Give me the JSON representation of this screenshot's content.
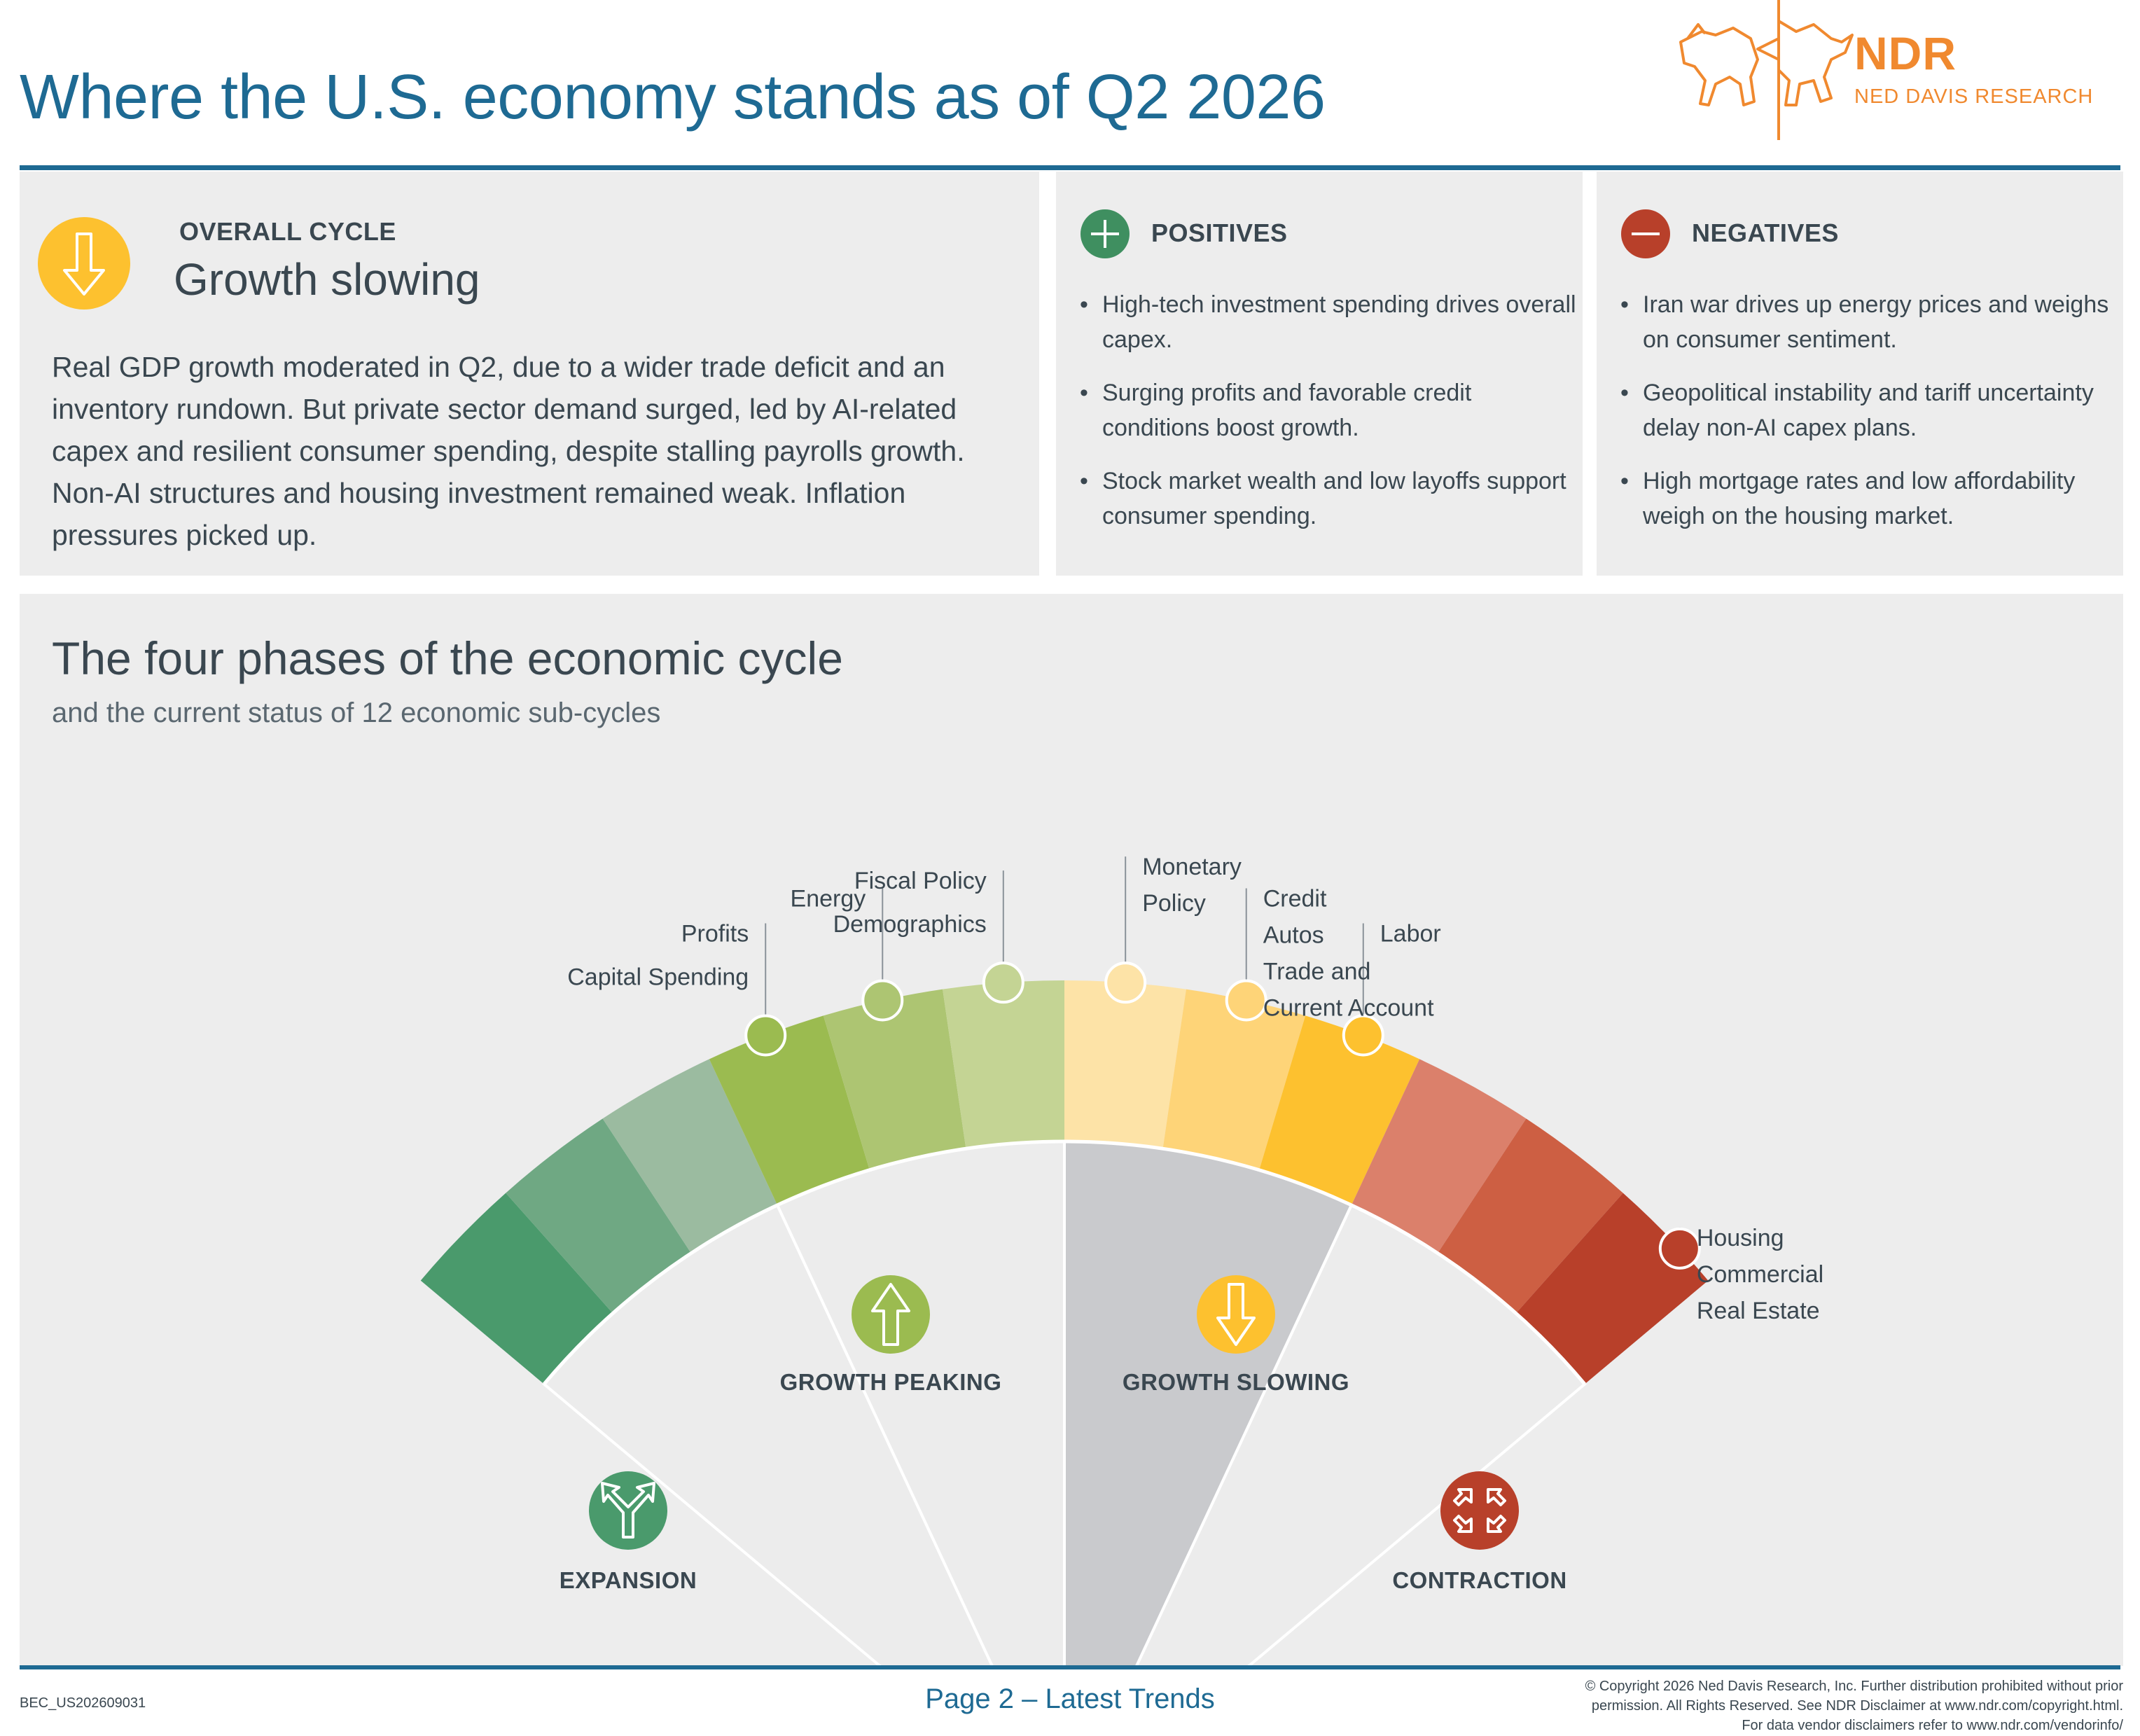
{
  "header": {
    "title": "Where the U.S. economy stands as of Q2 2026",
    "logo_name": "NDR",
    "logo_subtitle": "NED DAVIS RESEARCH"
  },
  "overall": {
    "label": "OVERALL CYCLE",
    "status": "Growth slowing",
    "icon": "arrow-down-icon",
    "text": "Real GDP growth moderated in Q2, due to a wider trade deficit and an inventory rundown. But private sector demand surged, led by AI-related capex and resilient consumer spending, despite stalling payrolls growth. Non-AI structures and housing investment remained weak. Inflation pressures picked up."
  },
  "positives": {
    "label": "POSITIVES",
    "icon": "plus-icon",
    "items": [
      "High-tech investment spending drives overall capex.",
      "Surging profits and favorable credit conditions boost growth.",
      "Stock market wealth and low layoffs support consumer spending."
    ]
  },
  "negatives": {
    "label": "NEGATIVES",
    "icon": "minus-icon",
    "items": [
      "Iran war drives up energy prices and weighs on consumer sentiment.",
      "Geopolitical instability and tariff uncertainty delay non-AI capex plans.",
      "High mortgage rates and low affordability weigh on the housing market."
    ]
  },
  "cycle": {
    "title": "The four phases of the economic cycle",
    "subtitle": "and the current status of 12 economic sub-cycles",
    "phases": {
      "expansion": "EXPANSION",
      "peaking": "GROWTH PEAKING",
      "slowing": "GROWTH SLOWING",
      "contraction": "CONTRACTION"
    },
    "phase_icons": {
      "expansion": "diverging-arrows-icon",
      "peaking": "arrow-up-icon",
      "slowing": "arrow-down-icon",
      "contraction": "converging-arrows-icon"
    },
    "segment_colors": [
      "#4a9a6c",
      "#6fa883",
      "#9bbba0",
      "#9bbb50",
      "#adc572",
      "#c4d494",
      "#fde3a7",
      "#fed478",
      "#fdc12f",
      "#db806b",
      "#cd5f43",
      "#b8402a"
    ],
    "markers": [
      {
        "labels": [
          "Profits",
          "Capital Spending"
        ],
        "segment": 4
      },
      {
        "labels": [
          "Energy"
        ],
        "segment": 5
      },
      {
        "labels": [
          "Fiscal Policy",
          "Demographics"
        ],
        "segment": 6
      },
      {
        "labels": [
          "Monetary",
          "Policy"
        ],
        "segment": 7
      },
      {
        "labels": [
          "Credit",
          "Autos",
          "Trade and",
          "Current Account"
        ],
        "segment": 8
      },
      {
        "labels": [
          "Labor"
        ],
        "segment": 9
      },
      {
        "labels": [
          "Housing",
          "Commercial",
          "Real Estate"
        ],
        "segment": 12
      }
    ]
  },
  "footer": {
    "code": "BEC_US202609031",
    "page": "Page 2 – Latest Trends",
    "copyright_lines": [
      "© Copyright 2026 Ned Davis Research, Inc. Further distribution prohibited without prior",
      "permission. All Rights Reserved. See NDR Disclaimer at www.ndr.com/copyright.html.",
      "For data vendor disclaimers refer to www.ndr.com/vendorinfo/"
    ]
  }
}
